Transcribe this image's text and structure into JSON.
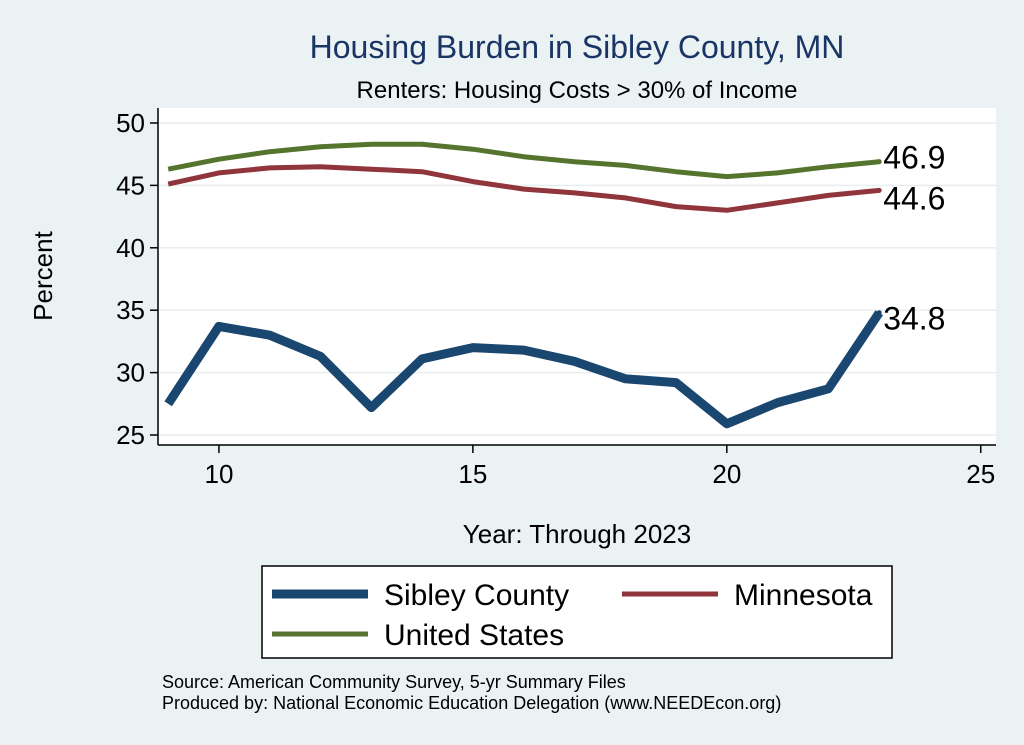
{
  "chart_data": {
    "type": "line",
    "title": "Housing Burden in Sibley County, MN",
    "subtitle": "Renters: Housing Costs > 30% of Income",
    "xlabel": "Year: Through 2023",
    "ylabel": "Percent",
    "xlim": [
      8.8,
      25.3
    ],
    "ylim": [
      24.2,
      51.2
    ],
    "xticks": [
      10,
      15,
      20,
      25
    ],
    "yticks": [
      25,
      30,
      35,
      40,
      45,
      50
    ],
    "grid": true,
    "legend_position": "bottom",
    "x": [
      9,
      10,
      11,
      12,
      13,
      14,
      15,
      16,
      17,
      18,
      19,
      20,
      21,
      22,
      23
    ],
    "series": [
      {
        "name": "Sibley County",
        "color": "#1a476f",
        "width": 9,
        "values": [
          27.5,
          33.7,
          33.0,
          31.3,
          27.2,
          31.1,
          32.0,
          31.8,
          30.9,
          29.5,
          29.2,
          25.9,
          27.6,
          28.7,
          34.8
        ],
        "end_label": "34.8"
      },
      {
        "name": "Minnesota",
        "color": "#90353b",
        "width": 5,
        "values": [
          45.1,
          46.0,
          46.4,
          46.5,
          46.3,
          46.1,
          45.3,
          44.7,
          44.4,
          44.0,
          43.3,
          43.0,
          43.6,
          44.2,
          44.6
        ],
        "end_label": "44.6"
      },
      {
        "name": "United States",
        "color": "#55752f",
        "width": 5,
        "values": [
          46.3,
          47.1,
          47.7,
          48.1,
          48.3,
          48.3,
          47.9,
          47.3,
          46.9,
          46.6,
          46.1,
          45.7,
          46.0,
          46.5,
          46.9
        ],
        "end_label": "46.9"
      }
    ],
    "notes": [
      "Source: American Community Survey, 5-yr Summary Files",
      "Produced by: National Economic Education Delegation (www.NEEDEcon.org)"
    ]
  }
}
